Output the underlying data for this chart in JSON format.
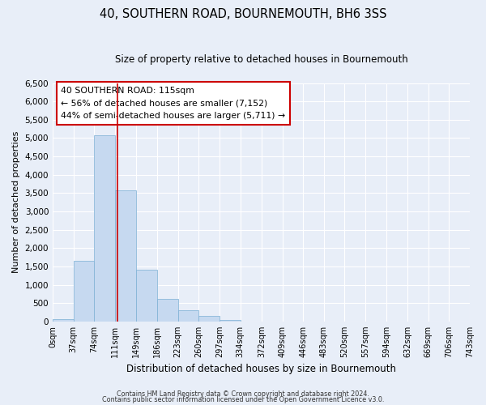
{
  "title": "40, SOUTHERN ROAD, BOURNEMOUTH, BH6 3SS",
  "subtitle": "Size of property relative to detached houses in Bournemouth",
  "xlabel": "Distribution of detached houses by size in Bournemouth",
  "ylabel": "Number of detached properties",
  "bin_edges": [
    0,
    37,
    74,
    111,
    149,
    186,
    223,
    260,
    297,
    334,
    372,
    409,
    446,
    483,
    520,
    557,
    594,
    632,
    669,
    706,
    743
  ],
  "bin_counts": [
    70,
    1650,
    5080,
    3580,
    1420,
    610,
    300,
    145,
    50,
    0,
    0,
    0,
    0,
    0,
    0,
    0,
    0,
    0,
    0,
    0
  ],
  "bar_facecolor": "#c6d9f0",
  "bar_edgecolor": "#7bafd4",
  "property_line_x": 115,
  "property_line_color": "#cc0000",
  "ylim": [
    0,
    6500
  ],
  "yticks": [
    0,
    500,
    1000,
    1500,
    2000,
    2500,
    3000,
    3500,
    4000,
    4500,
    5000,
    5500,
    6000,
    6500
  ],
  "annotation_box_text": "40 SOUTHERN ROAD: 115sqm\n← 56% of detached houses are smaller (7,152)\n44% of semi-detached houses are larger (5,711) →",
  "footer_line1": "Contains HM Land Registry data © Crown copyright and database right 2024.",
  "footer_line2": "Contains public sector information licensed under the Open Government Licence v3.0.",
  "background_color": "#e8eef8",
  "grid_color": "#ffffff",
  "tick_labels": [
    "0sqm",
    "37sqm",
    "74sqm",
    "111sqm",
    "149sqm",
    "186sqm",
    "223sqm",
    "260sqm",
    "297sqm",
    "334sqm",
    "372sqm",
    "409sqm",
    "446sqm",
    "483sqm",
    "520sqm",
    "557sqm",
    "594sqm",
    "632sqm",
    "669sqm",
    "706sqm",
    "743sqm"
  ]
}
